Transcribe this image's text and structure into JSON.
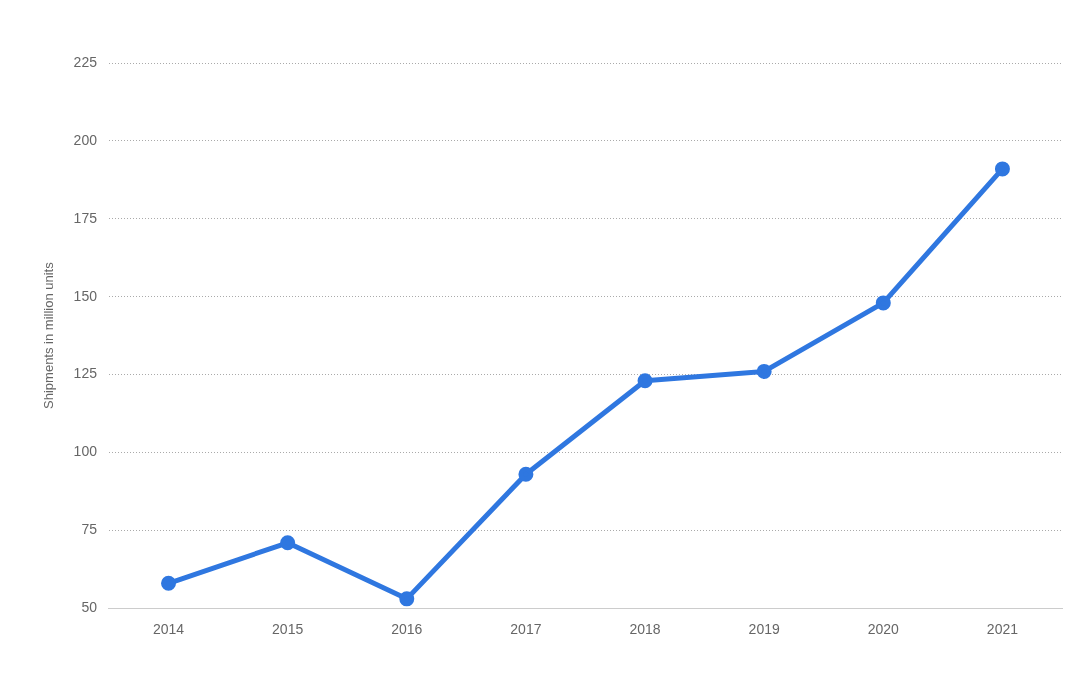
{
  "chart_data": {
    "type": "line",
    "ylabel": "Shipments in million units",
    "categories": [
      "2014",
      "2015",
      "2016",
      "2017",
      "2018",
      "2019",
      "2020",
      "2021"
    ],
    "series": [
      {
        "color": "#2f77e0",
        "values": [
          58,
          71,
          53,
          93,
          123,
          126,
          148,
          191
        ]
      }
    ],
    "ylim": [
      50,
      225
    ],
    "yticks": [
      50,
      75,
      100,
      125,
      150,
      175,
      200,
      225
    ],
    "grid": "y",
    "legend": false,
    "marker": "circle",
    "line_style": "solid"
  }
}
